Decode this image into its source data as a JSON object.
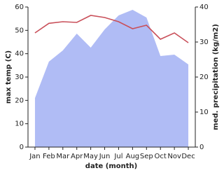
{
  "chart_data": {
    "type": "line",
    "x_label": "date (month)",
    "y_label": "max temp (C)",
    "y2_label": "med. precipitation (kg/m2)",
    "categories": [
      "Jan",
      "Feb",
      "Mar",
      "Apr",
      "May",
      "Jun",
      "Jul",
      "Aug",
      "Sep",
      "Oct",
      "Nov",
      "Dec"
    ],
    "ylim": [
      0,
      60
    ],
    "yticks": [
      0,
      10,
      20,
      30,
      40,
      50,
      60
    ],
    "y2lim": [
      0,
      40
    ],
    "y2ticks": [
      0,
      10,
      20,
      30,
      40
    ],
    "series": [
      {
        "type": "area",
        "axis": "y2",
        "color": "#b0bcf5",
        "values": [
          14,
          24.4,
          27.6,
          32.4,
          28.4,
          33.6,
          37.6,
          39.2,
          37,
          26,
          26.4,
          23.6
        ]
      },
      {
        "type": "line",
        "axis": "y",
        "color": "#c9505a",
        "values": [
          48.9,
          53,
          53.7,
          53.4,
          56.4,
          55.5,
          53.7,
          50.7,
          52.2,
          46.2,
          48.9,
          44.7
        ]
      }
    ]
  }
}
